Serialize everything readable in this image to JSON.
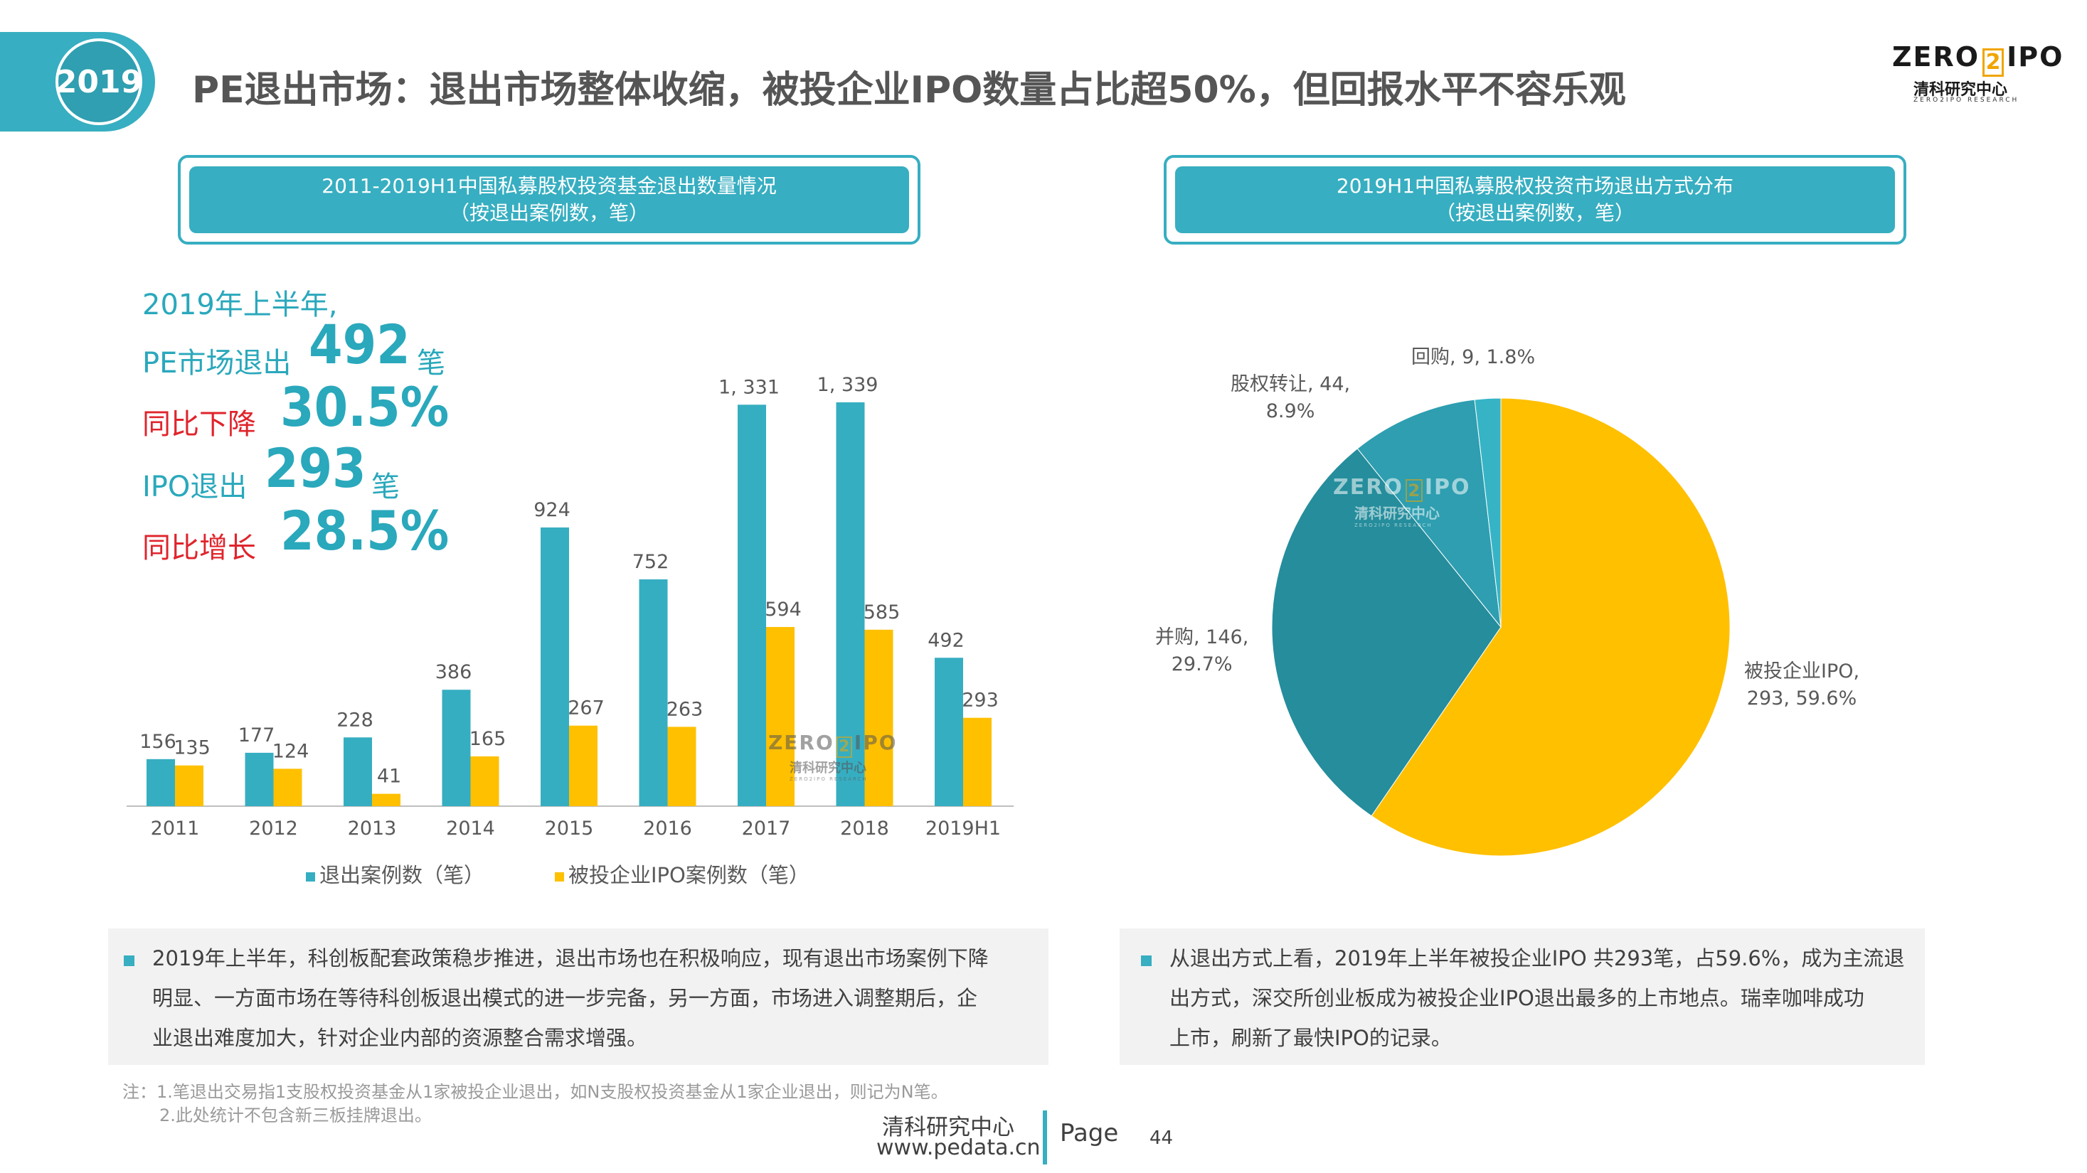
{
  "header": {
    "year_badge": "2019",
    "title": "PE退出市场：退出市场整体收缩，被投企业IPO数量占比超50%，但回报水平不容乐观"
  },
  "logo": {
    "en_left": "ZERO",
    "en_mid": "2",
    "en_right": "IPO",
    "cn": "清科研究中心",
    "sub": "ZERO2IPO RESEARCH"
  },
  "left_panel": {
    "title_line1": "2011-2019H1中国私募股权投资基金退出数量情况",
    "title_line2": "（按退出案例数，笔）"
  },
  "right_panel": {
    "title_line1": "2019H1中国私募股权投资市场退出方式分布",
    "title_line2": "（按退出案例数，笔）"
  },
  "highlights": {
    "line1": "2019年上半年,",
    "line2_label": "PE市场退出",
    "line2_value": "492",
    "line2_unit": "笔",
    "line3_label": "同比下降",
    "line3_value": "30.5%",
    "line4_label": "IPO退出",
    "line4_value": "293",
    "line4_unit": "笔",
    "line5_label": "同比增长",
    "line5_value": "28.5%"
  },
  "chart_data": [
    {
      "type": "bar",
      "title": "2011-2019H1中国私募股权投资基金退出数量情况（按退出案例数，笔）",
      "categories": [
        "2011",
        "2012",
        "2013",
        "2014",
        "2015",
        "2016",
        "2017",
        "2018",
        "2019H1"
      ],
      "series": [
        {
          "name": "退出案例数（笔）",
          "values": [
            156,
            177,
            228,
            386,
            924,
            752,
            1331,
            1339,
            492
          ],
          "labels": [
            "156",
            "177",
            "228",
            "386",
            "924",
            "752",
            "1, 331",
            "1, 339",
            "492"
          ],
          "color": "#36aec1"
        },
        {
          "name": "被投企业IPO案例数（笔）",
          "values": [
            135,
            124,
            41,
            165,
            267,
            263,
            594,
            585,
            293
          ],
          "labels": [
            "135",
            "124",
            "41",
            "165",
            "267",
            "263",
            "594",
            "585",
            "293"
          ],
          "color": "#ffc000"
        }
      ],
      "ylim": [
        0,
        1400
      ],
      "legend": "bottom",
      "grid": false
    },
    {
      "type": "pie",
      "title": "2019H1中国私募股权投资市场退出方式分布（按退出案例数，笔）",
      "slices": [
        {
          "name": "被投企业IPO",
          "value": 293,
          "percent": 59.6,
          "color": "#ffc000",
          "label_line1": "被投企业IPO,",
          "label_line2": "293, 59.6%"
        },
        {
          "name": "并购",
          "value": 146,
          "percent": 29.7,
          "color": "#258d9c",
          "label_line1": "并购, 146,",
          "label_line2": "29.7%"
        },
        {
          "name": "股权转让",
          "value": 44,
          "percent": 8.9,
          "color": "#2e9eb0",
          "label_line1": "股权转让, 44,",
          "label_line2": "8.9%"
        },
        {
          "name": "回购",
          "value": 9,
          "percent": 1.8,
          "color": "#36b4c6",
          "label_line1": "回购, 9, 1.8%",
          "label_line2": ""
        }
      ]
    }
  ],
  "notes": {
    "left_l1": "2019年上半年，科创板配套政策稳步推进，退出市场也在积极响应，现有退出市场案例下降",
    "left_l2": "明显、一方面市场在等待科创板退出模式的进一步完备，另一方面，市场进入调整期后，企",
    "left_l3": "业退出难度加大，针对企业内部的资源整合需求增强。",
    "right_l1": "从退出方式上看，2019年上半年被投企业IPO 共293笔，占59.6%，成为主流退",
    "right_l2": "出方式，深交所创业板成为被投企业IPO退出最多的上市地点。瑞幸咖啡成功",
    "right_l3": "上市，刷新了最快IPO的记录。"
  },
  "footnote": {
    "line1": "注：1.笔退出交易指1支股权投资基金从1家被投企业退出，如N支股权投资基金从1家企业退出，则记为N笔。",
    "line2": "2.此处统计不包含新三板挂牌退出。"
  },
  "footer": {
    "org": "清科研究中心",
    "url": "www.pedata.cn",
    "page_label": "Page",
    "page_number": "44"
  }
}
